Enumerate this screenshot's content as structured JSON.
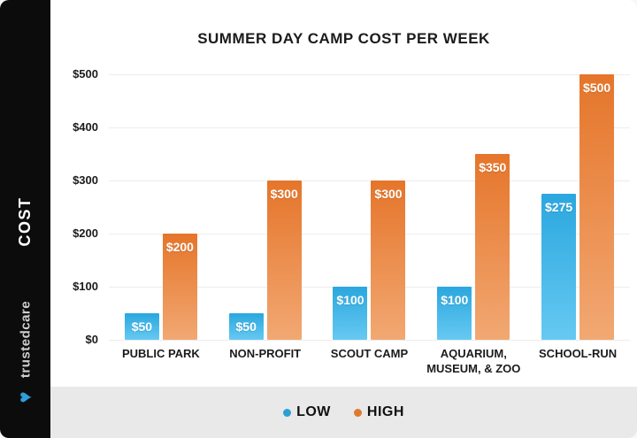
{
  "branding": {
    "sidebar_label": "COST",
    "brand_name": "trustedcare",
    "heart_icon_color": "#2D9FDC"
  },
  "chart_data": {
    "type": "bar",
    "title": "SUMMER DAY CAMP COST PER WEEK",
    "categories": [
      "PUBLIC PARK",
      "NON-PROFIT",
      "SCOUT CAMP",
      "AQUARIUM,\nMUSEUM, & ZOO",
      "SCHOOL-RUN"
    ],
    "series": [
      {
        "name": "LOW",
        "values": [
          50,
          50,
          100,
          100,
          275
        ],
        "value_labels": [
          "$50",
          "$50",
          "$100",
          "$100",
          "$275"
        ],
        "color_top": "#2AA7DF",
        "color_bottom": "#66C9F2",
        "dot_color": "#2C9FD6"
      },
      {
        "name": "HIGH",
        "values": [
          200,
          300,
          300,
          350,
          500
        ],
        "value_labels": [
          "$200",
          "$300",
          "$300",
          "$350",
          "$500"
        ],
        "color_top": "#E5752A",
        "color_bottom": "#F2A873",
        "dot_color": "#E0792F"
      }
    ],
    "xlabel": "",
    "ylabel": "COST",
    "yticks": [
      0,
      100,
      200,
      300,
      400,
      500
    ],
    "ytick_labels": [
      "$0",
      "$100",
      "$200",
      "$300",
      "$400",
      "$500"
    ],
    "ylim": [
      0,
      500
    ],
    "grid": true,
    "legend_position": "bottom"
  }
}
